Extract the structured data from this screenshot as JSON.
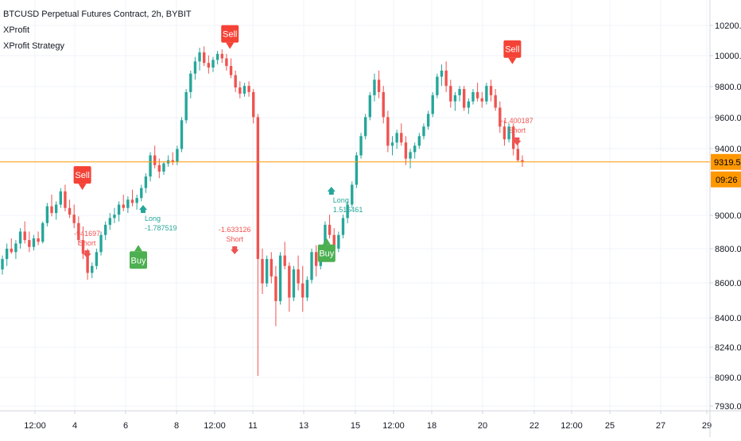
{
  "header": {
    "title": "BTCUSD Perpetual Futures Contract, 2h, BYBIT",
    "indicators": [
      "XProfit",
      "XProfit Strategy"
    ]
  },
  "colors": {
    "up": "#26a69a",
    "down": "#ef5350",
    "buy_label": "#4caf50",
    "sell_label": "#f44336",
    "long_text": "#26a69a",
    "short_text": "#ef5350",
    "price_line": "#ff9800",
    "grid": "#f0f3fa",
    "axis_text": "#131722",
    "axis_line": "#d1d4dc"
  },
  "chart_data": {
    "type": "candlestick",
    "y_axis_ticks": [
      "10200.0",
      "10000.0",
      "9800.0",
      "9600.0",
      "9400.0",
      "9000.0",
      "8800.0",
      "8600.0",
      "8400.0",
      "8240.0",
      "8090.0",
      "7930.0"
    ],
    "y_axis_scale": "log",
    "ylim": [
      7930,
      10250
    ],
    "x_axis_ticks": [
      "12:00",
      "4",
      "6",
      "8",
      "12:00",
      "11",
      "13",
      "15",
      "12:00",
      "18",
      "20",
      "22",
      "12:00",
      "25",
      "27",
      "29"
    ],
    "last_price": "9319.5",
    "countdown": "09:26",
    "signals": [
      {
        "label": "Sell",
        "price": 9100,
        "date_index": 4.3
      },
      {
        "label": "Buy",
        "price": 8840,
        "date_index": 6.5
      },
      {
        "label": "Sell",
        "price": 9990,
        "date_index": 10.1
      },
      {
        "label": "Buy",
        "price": 8880,
        "date_index": 13.9
      },
      {
        "label": "Sell",
        "price": 9890,
        "date_index": 21.2
      }
    ],
    "trade_marks": [
      {
        "side": "Short",
        "pnl": "-941697",
        "date_index": 4.3
      },
      {
        "side": "Long",
        "pnl": "-1.787519",
        "date_index": 6.5
      },
      {
        "side": "Short",
        "pnl": "-1.633126",
        "date_index": 10.1
      },
      {
        "side": "Long",
        "pnl": "1.516461",
        "date_index": 13.9
      },
      {
        "side": "Short",
        "pnl": "-1.400187",
        "date_index": 21.2
      }
    ],
    "candles": [
      [
        8680,
        8760,
        8650,
        8740
      ],
      [
        8740,
        8830,
        8700,
        8800
      ],
      [
        8800,
        8860,
        8770,
        8780
      ],
      [
        8780,
        8850,
        8740,
        8830
      ],
      [
        8830,
        8920,
        8800,
        8900
      ],
      [
        8900,
        8960,
        8830,
        8850
      ],
      [
        8850,
        8900,
        8780,
        8810
      ],
      [
        8810,
        8880,
        8790,
        8860
      ],
      [
        8860,
        8900,
        8820,
        8840
      ],
      [
        8840,
        8960,
        8830,
        8950
      ],
      [
        8950,
        9070,
        8930,
        9050
      ],
      [
        9050,
        9120,
        8990,
        9010
      ],
      [
        9010,
        9080,
        8970,
        9060
      ],
      [
        9060,
        9160,
        9040,
        9140
      ],
      [
        9140,
        9180,
        9020,
        9040
      ],
      [
        9040,
        9090,
        8980,
        9000
      ],
      [
        9000,
        9060,
        8920,
        8950
      ],
      [
        8950,
        8990,
        8820,
        8850
      ],
      [
        8850,
        8930,
        8740,
        8770
      ],
      [
        8770,
        8800,
        8620,
        8660
      ],
      [
        8660,
        8720,
        8630,
        8700
      ],
      [
        8700,
        8800,
        8680,
        8780
      ],
      [
        8780,
        8900,
        8760,
        8880
      ],
      [
        8880,
        8960,
        8850,
        8940
      ],
      [
        8940,
        9010,
        8910,
        8980
      ],
      [
        8980,
        9040,
        8950,
        9000
      ],
      [
        9000,
        9080,
        8960,
        9060
      ],
      [
        9060,
        9120,
        9020,
        9040
      ],
      [
        9040,
        9110,
        9010,
        9090
      ],
      [
        9090,
        9150,
        9050,
        9070
      ],
      [
        9070,
        9120,
        9030,
        9100
      ],
      [
        9100,
        9180,
        9080,
        9160
      ],
      [
        9160,
        9250,
        9130,
        9230
      ],
      [
        9230,
        9380,
        9200,
        9360
      ],
      [
        9360,
        9420,
        9280,
        9300
      ],
      [
        9300,
        9340,
        9220,
        9260
      ],
      [
        9260,
        9320,
        9240,
        9310
      ],
      [
        9310,
        9360,
        9290,
        9330
      ],
      [
        9330,
        9380,
        9300,
        9320
      ],
      [
        9320,
        9420,
        9300,
        9400
      ],
      [
        9400,
        9600,
        9380,
        9580
      ],
      [
        9580,
        9780,
        9560,
        9760
      ],
      [
        9760,
        9900,
        9720,
        9880
      ],
      [
        9880,
        9990,
        9840,
        9960
      ],
      [
        9960,
        10050,
        9900,
        10020
      ],
      [
        10020,
        10060,
        9930,
        9950
      ],
      [
        9950,
        10000,
        9880,
        9920
      ],
      [
        9920,
        9990,
        9890,
        9970
      ],
      [
        9970,
        10030,
        9940,
        10010
      ],
      [
        10010,
        10040,
        9950,
        9980
      ],
      [
        9980,
        10010,
        9900,
        9930
      ],
      [
        9930,
        9980,
        9850,
        9870
      ],
      [
        9870,
        9900,
        9760,
        9790
      ],
      [
        9790,
        9830,
        9720,
        9750
      ],
      [
        9750,
        9820,
        9730,
        9800
      ],
      [
        9800,
        9830,
        9730,
        9760
      ],
      [
        9760,
        9780,
        9560,
        9600
      ],
      [
        9600,
        9620,
        8090,
        8740
      ],
      [
        8740,
        8800,
        8540,
        8600
      ],
      [
        8600,
        8760,
        8580,
        8740
      ],
      [
        8740,
        8780,
        8600,
        8640
      ],
      [
        8640,
        8700,
        8360,
        8500
      ],
      [
        8500,
        8780,
        8480,
        8760
      ],
      [
        8760,
        8840,
        8680,
        8700
      ],
      [
        8700,
        8720,
        8440,
        8520
      ],
      [
        8520,
        8700,
        8500,
        8680
      ],
      [
        8680,
        8760,
        8560,
        8600
      ],
      [
        8600,
        8700,
        8440,
        8520
      ],
      [
        8520,
        8640,
        8500,
        8620
      ],
      [
        8620,
        8800,
        8600,
        8780
      ],
      [
        8780,
        8820,
        8640,
        8700
      ],
      [
        8700,
        8780,
        8680,
        8760
      ],
      [
        8760,
        8960,
        8740,
        8940
      ],
      [
        8940,
        9000,
        8860,
        8880
      ],
      [
        8880,
        8920,
        8760,
        8800
      ],
      [
        8800,
        8900,
        8780,
        8880
      ],
      [
        8880,
        9000,
        8860,
        8980
      ],
      [
        8980,
        9080,
        8950,
        9060
      ],
      [
        9060,
        9200,
        9040,
        9180
      ],
      [
        9180,
        9380,
        9160,
        9360
      ],
      [
        9360,
        9500,
        9340,
        9480
      ],
      [
        9480,
        9620,
        9460,
        9600
      ],
      [
        9600,
        9760,
        9580,
        9740
      ],
      [
        9740,
        9880,
        9700,
        9840
      ],
      [
        9840,
        9900,
        9720,
        9760
      ],
      [
        9760,
        9800,
        9560,
        9600
      ],
      [
        9600,
        9640,
        9380,
        9420
      ],
      [
        9420,
        9480,
        9360,
        9440
      ],
      [
        9440,
        9520,
        9400,
        9500
      ],
      [
        9500,
        9560,
        9420,
        9440
      ],
      [
        9440,
        9480,
        9300,
        9340
      ],
      [
        9340,
        9400,
        9280,
        9380
      ],
      [
        9380,
        9440,
        9340,
        9420
      ],
      [
        9420,
        9500,
        9400,
        9480
      ],
      [
        9480,
        9560,
        9460,
        9540
      ],
      [
        9540,
        9640,
        9520,
        9620
      ],
      [
        9620,
        9760,
        9600,
        9740
      ],
      [
        9740,
        9880,
        9720,
        9860
      ],
      [
        9860,
        9940,
        9800,
        9900
      ],
      [
        9900,
        9960,
        9760,
        9800
      ],
      [
        9800,
        9840,
        9660,
        9700
      ],
      [
        9700,
        9760,
        9640,
        9740
      ],
      [
        9740,
        9800,
        9700,
        9780
      ],
      [
        9780,
        9800,
        9640,
        9660
      ],
      [
        9660,
        9720,
        9620,
        9700
      ],
      [
        9700,
        9780,
        9680,
        9760
      ],
      [
        9760,
        9820,
        9700,
        9720
      ],
      [
        9720,
        9760,
        9660,
        9700
      ],
      [
        9700,
        9820,
        9680,
        9800
      ],
      [
        9800,
        9840,
        9700,
        9740
      ],
      [
        9740,
        9780,
        9640,
        9660
      ],
      [
        9660,
        9700,
        9500,
        9540
      ],
      [
        9540,
        9580,
        9420,
        9460
      ],
      [
        9460,
        9560,
        9440,
        9540
      ],
      [
        9540,
        9560,
        9360,
        9400
      ],
      [
        9400,
        9440,
        9320,
        9330
      ],
      [
        9330,
        9360,
        9290,
        9319.5
      ]
    ]
  }
}
